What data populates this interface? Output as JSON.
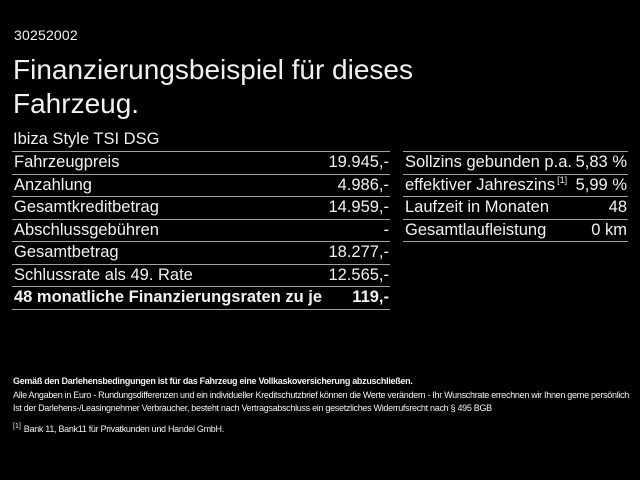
{
  "page": {
    "background": "#000000",
    "text_color": "#f2f2f2",
    "divider_color": "#a0a0a0"
  },
  "header": {
    "reference_number": "30252002",
    "title_line1": "Finanzierungsbeispiel für dieses",
    "title_line2": "Fahrzeug.",
    "vehicle_model": "Ibiza Style TSI DSG"
  },
  "finance_table": {
    "rows": [
      {
        "label": "Fahrzeugpreis",
        "value": "19.945,-"
      },
      {
        "label": "Anzahlung",
        "value": "4.986,-"
      },
      {
        "label": "Gesamtkreditbetrag",
        "value": "14.959,-"
      },
      {
        "label": "Abschlussgebühren",
        "value": "-"
      },
      {
        "label": "Gesamtbetrag",
        "value": "18.277,-"
      },
      {
        "label": "Schlussrate als 49. Rate",
        "value": "12.565,-"
      },
      {
        "label": "48 monatliche Finanzierungsraten zu je",
        "value": "119,-"
      }
    ]
  },
  "conditions_table": {
    "rows": [
      {
        "label": "Sollzins gebunden p.a.",
        "value": "5,83 %"
      },
      {
        "label": "effektiver Jahreszins",
        "sup": "[1]",
        "value": "5,99 %"
      },
      {
        "label": "Laufzeit in Monaten",
        "value": "48"
      },
      {
        "label": "Gesamtlaufleistung",
        "value": "0 km"
      }
    ]
  },
  "footer": {
    "insurance_note": "Gemäß den Darlehensbedingungen ist für das Fahrzeug eine Vollkaskoversicherung abzuschließen.",
    "disclaimer_line1": "Alle Angaben in Euro - Rundungsdifferenzen und ein individueller Kreditschutzbrief können die Werte verändern - Ihr Wunschrate errechnen wir Ihnen gerne persönlich",
    "disclaimer_line2": "Ist der Darlehens-/Leasingnehmer Verbraucher, besteht nach Vertragsabschluss ein gesetzliches Widerrufsrecht nach § 495 BGB",
    "footnote_marker": "[1]",
    "footnote_text": "Bank 11, Bank11 für Privatkunden und Handel GmbH."
  }
}
